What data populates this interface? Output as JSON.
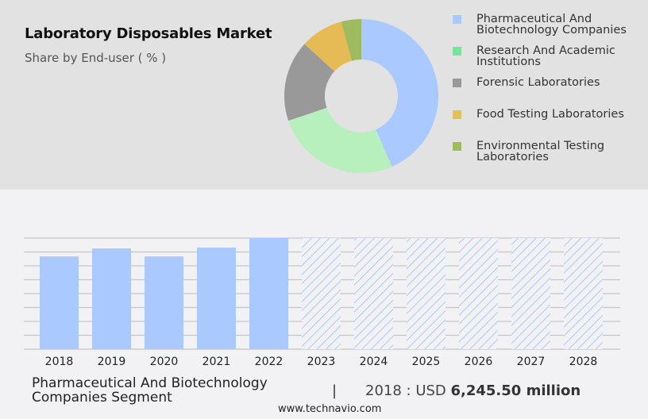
{
  "header": {
    "title": "Laboratory Disposables Market",
    "subtitle": "Share by End-user ( % )"
  },
  "legend": {
    "items": [
      {
        "label": "Pharmaceutical And Biotechnology Companies",
        "color": "#a9c9ff"
      },
      {
        "label": "Research And Academic Institutions",
        "color": "#78e39b"
      },
      {
        "label": "Forensic Laboratories",
        "color": "#999999"
      },
      {
        "label": "Food Testing Laboratories",
        "color": "#dfc35a"
      },
      {
        "label": "Environmental Testing Laboratories",
        "color": "#9fbb5f"
      }
    ]
  },
  "footer": {
    "segment": "Pharmaceutical And Biotechnology Companies Segment",
    "separator": "|",
    "value_prefix": "2018 : USD ",
    "value_bold": "6,245.50 million",
    "url": "www.technavio.com"
  },
  "chart_data": [
    {
      "type": "pie",
      "title": "Laboratory Disposables Market",
      "subtitle": "Share by End-user ( % )",
      "donut": true,
      "categories": [
        "Pharmaceutical And Biotechnology Companies",
        "Research And Academic Institutions",
        "Forensic Laboratories",
        "Food Testing Laboratories",
        "Environmental Testing Laboratories"
      ],
      "values": [
        43.5,
        26.3,
        17.0,
        9.0,
        4.2
      ],
      "colors": [
        "#a9c9ff",
        "#b7efbd",
        "#999999",
        "#e6bb55",
        "#9fbb5f"
      ],
      "legend_position": "right"
    },
    {
      "type": "bar",
      "title": "Pharmaceutical And Biotechnology Companies Segment",
      "categories": [
        "2018",
        "2019",
        "2020",
        "2021",
        "2022",
        "2023",
        "2024",
        "2025",
        "2026",
        "2027",
        "2028"
      ],
      "values": [
        6245.5,
        6780,
        6245.5,
        6840,
        7480,
        null,
        null,
        null,
        null,
        null,
        null
      ],
      "forecast_years": [
        "2023",
        "2024",
        "2025",
        "2026",
        "2027",
        "2028"
      ],
      "unit": "USD million",
      "xlabel": "",
      "ylabel": "",
      "grid": true,
      "bar_color": "#a9c9ff",
      "forecast_style": "hatched"
    }
  ]
}
